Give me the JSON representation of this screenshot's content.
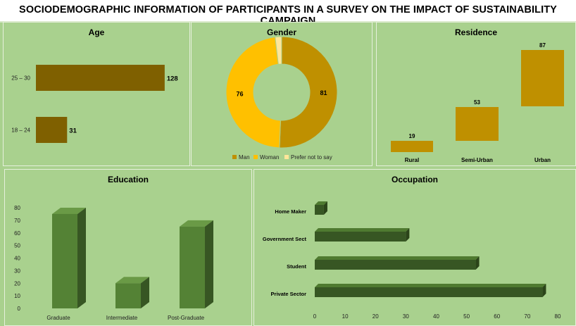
{
  "page_title": "SOCIODEMOGRAPHIC INFORMATION OF PARTICIPANTS IN A SURVEY ON THE IMPACT OF SUSTAINABILITY CAMPAIGN",
  "colors": {
    "background": "#a9d18e",
    "age_bar": "#7f6000",
    "man": "#bf9000",
    "woman": "#ffc000",
    "prefer_not": "#ffe699",
    "residence_bar": "#bf9000",
    "education_front": "#548235",
    "education_side": "#375623",
    "occupation_front": "#375623",
    "occupation_top": "#4f7a30"
  },
  "chart_data": [
    {
      "id": "age",
      "type": "bar",
      "orientation": "horizontal",
      "title": "Age",
      "categories": [
        "25 – 30",
        "18 – 24"
      ],
      "values": [
        128,
        31
      ],
      "xlim": [
        0,
        140
      ]
    },
    {
      "id": "gender",
      "type": "pie",
      "style": "doughnut",
      "title": "Gender",
      "labels": [
        "Man",
        "Woman",
        "Prefer not to say"
      ],
      "values": [
        81,
        76,
        3
      ],
      "data_labels": [
        "81",
        "76",
        ""
      ],
      "colors": [
        "#bf9000",
        "#ffc000",
        "#ffe699"
      ],
      "legend": "bottom"
    },
    {
      "id": "residence",
      "type": "bar",
      "style": "floating",
      "title": "Residence",
      "categories": [
        "Rural",
        "Semi-Urban",
        "Urban"
      ],
      "values": [
        19,
        53,
        87
      ]
    },
    {
      "id": "education",
      "type": "bar",
      "style": "3d",
      "title": "Education",
      "categories": [
        "Graduate",
        "Intermediate",
        "Post-Graduate"
      ],
      "values": [
        75,
        20,
        65
      ],
      "ylim": [
        0,
        80
      ],
      "yticks": [
        "0",
        "10",
        "20",
        "30",
        "40",
        "50",
        "60",
        "70",
        "80"
      ]
    },
    {
      "id": "occupation",
      "type": "bar",
      "orientation": "horizontal",
      "style": "3d",
      "title": "Occupation",
      "categories": [
        "Home Maker",
        "Government Sect",
        "Student",
        "Private Sector"
      ],
      "values": [
        3,
        30,
        53,
        75
      ],
      "xlim": [
        0,
        80
      ],
      "xticks": [
        "0",
        "10",
        "20",
        "30",
        "40",
        "50",
        "60",
        "70",
        "80"
      ]
    }
  ]
}
